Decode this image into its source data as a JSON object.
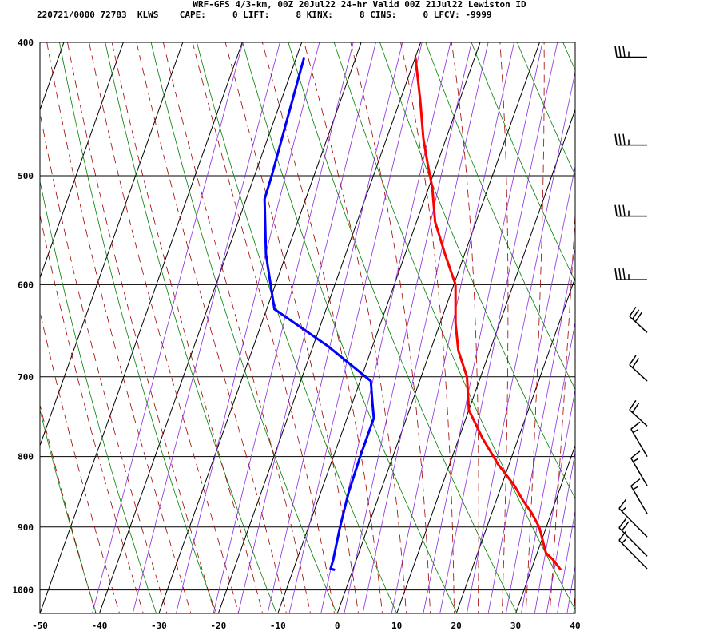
{
  "header": {
    "title": "WRF-GFS 4/3-km, 00Z 20Jul22 24-hr Valid 00Z 21Jul22 Lewiston ID",
    "stats": "220721/0000 72783  KLWS    CAPE:     0 LIFT:     8 KINX:     8 CINS:     0 LFCV: -9999"
  },
  "chart_data": {
    "type": "line",
    "title": "WRF-GFS 4/3-km, 00Z 20Jul22 24-hr Valid 00Z 21Jul22 Lewiston ID",
    "xlabel": "",
    "ylabel": "",
    "x_ticks": [
      -50,
      -40,
      -30,
      -20,
      -10,
      0,
      10,
      20,
      30,
      40
    ],
    "pressure_ticks": [
      400,
      500,
      600,
      700,
      800,
      900,
      1000
    ],
    "xlim": [
      -50,
      40
    ],
    "plim": [
      400,
      1040
    ],
    "skew": "skew-T",
    "grid": true,
    "colors": {
      "temperature": "#ff0000",
      "dewpoint": "#0000ff",
      "dry_adiabat": "#008000",
      "moist_adiabat": "#a00000",
      "mixing_ratio": "#8a2be2",
      "grid": "#000000",
      "barb": "#000000"
    },
    "series": [
      {
        "x": [
          35.0,
          34.2,
          33.0,
          31.5,
          30.5,
          28.8,
          26.8,
          24.4,
          22.2,
          18.1,
          13.9,
          10.0,
          7.7,
          4.7,
          2.6,
          0.3,
          -3.3,
          -6.9,
          -9.4,
          -11.6,
          -13.8,
          -16.7,
          -20.0
        ],
        "y": [
          967,
          960,
          950,
          940,
          925,
          900,
          880,
          860,
          840,
          810,
          775,
          740,
          700,
          670,
          640,
          600,
          570,
          540,
          510,
          490,
          470,
          440,
          410
        ]
      },
      {
        "x": [
          -3.0,
          -3.8,
          -3.9,
          -4.3,
          -4.7,
          -5.3,
          -5.5,
          -5.5,
          -6.7,
          -8.2,
          -17.5,
          -28.7,
          -30.2,
          -33.4,
          -36.9,
          -37.0,
          -37.1,
          -38.7
        ],
        "y": [
          967,
          965,
          950,
          925,
          900,
          850,
          800,
          750,
          730,
          705,
          665,
          625,
          607,
          570,
          520,
          510,
          500,
          410
        ]
      }
    ],
    "wind_barbs": [
      {
        "p": 410,
        "speed": 35
      },
      {
        "p": 475,
        "speed": 35
      },
      {
        "p": 535,
        "speed": 35
      },
      {
        "p": 595,
        "speed": 35
      },
      {
        "p": 650,
        "speed": 30
      },
      {
        "p": 705,
        "speed": 20
      },
      {
        "p": 760,
        "speed": 20
      },
      {
        "p": 800,
        "speed": 15
      },
      {
        "p": 840,
        "speed": 15
      },
      {
        "p": 880,
        "speed": 15
      },
      {
        "p": 915,
        "speed": 15
      },
      {
        "p": 945,
        "speed": 20
      },
      {
        "p": 965,
        "speed": 15
      }
    ]
  }
}
